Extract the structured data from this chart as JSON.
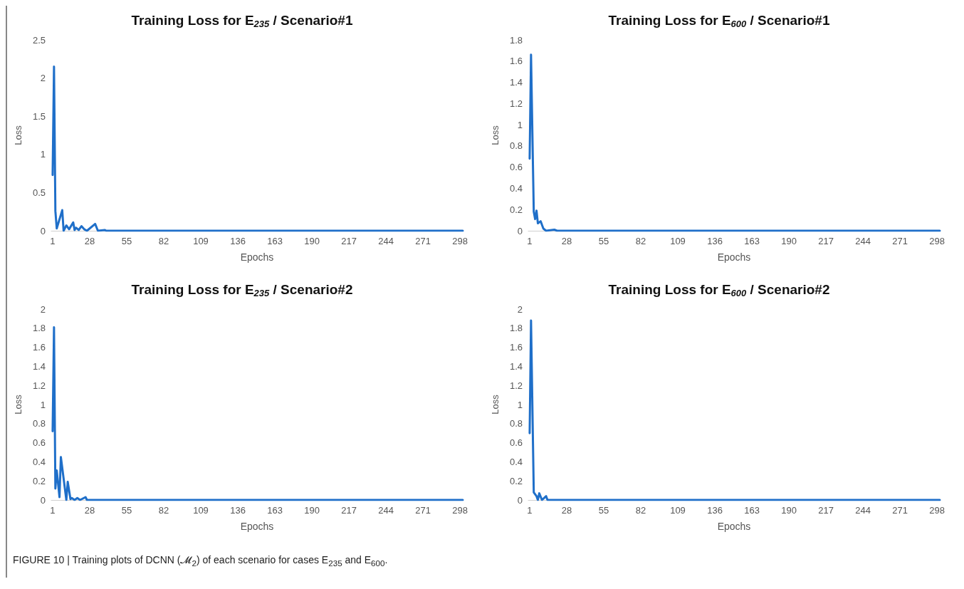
{
  "chart_data": [
    {
      "type": "line",
      "title": "Training Loss for E$_{235}$ / Scenario#1",
      "xlabel": "Epochs",
      "ylabel": "Loss",
      "xlim": [
        0,
        300
      ],
      "xticks": [
        1,
        28,
        55,
        82,
        109,
        136,
        163,
        190,
        217,
        244,
        271,
        298
      ],
      "ylim": [
        0,
        2.5
      ],
      "yticks": [
        0,
        0.5,
        1,
        1.5,
        2,
        2.5
      ],
      "grid": false,
      "marker": "none",
      "line_style": "solid",
      "annotations": [
        "FIGURE 10 | Training plots of DCNN (𝓜$_{2}$) of each scenario for cases E$_{235}$ and E$_{600}$."
      ],
      "series": [
        {
          "color": "#1f6fc9",
          "x": [
            1,
            2,
            3,
            4,
            8,
            9,
            11,
            13,
            16,
            17,
            18,
            20,
            22,
            24,
            26,
            32,
            34,
            39,
            40,
            300
          ],
          "values": [
            0.73,
            2.15,
            0.26,
            0.03,
            0.27,
            0,
            0.07,
            0.02,
            0.11,
            0.01,
            0.04,
            0.01,
            0.06,
            0.02,
            0,
            0.09,
            0,
            0.01,
            0,
            0
          ]
        }
      ]
    },
    {
      "type": "line",
      "title": "Training Loss for E$_{600}$ / Scenario#1",
      "xlabel": "Epochs",
      "ylabel": "Loss",
      "xlim": [
        0,
        300
      ],
      "xticks": [
        1,
        28,
        55,
        82,
        109,
        136,
        163,
        190,
        217,
        244,
        271,
        298
      ],
      "ylim": [
        0,
        1.8
      ],
      "yticks": [
        0,
        0.2,
        0.4,
        0.6,
        0.8,
        1,
        1.2,
        1.4,
        1.6,
        1.8
      ],
      "grid": false,
      "marker": "none",
      "line_style": "solid",
      "series": [
        {
          "color": "#1f6fc9",
          "x": [
            1,
            2,
            4,
            5,
            6,
            7,
            9,
            11,
            13,
            19,
            21,
            300
          ],
          "values": [
            0.68,
            1.66,
            0.18,
            0.11,
            0.19,
            0.07,
            0.09,
            0.02,
            0,
            0.01,
            0,
            0
          ]
        }
      ]
    },
    {
      "type": "line",
      "title": "Training Loss for E$_{235}$ / Scenario#2",
      "xlabel": "Epochs",
      "ylabel": "Loss",
      "xlim": [
        0,
        300
      ],
      "xticks": [
        1,
        28,
        55,
        82,
        109,
        136,
        163,
        190,
        217,
        244,
        271,
        298
      ],
      "ylim": [
        0,
        2
      ],
      "yticks": [
        0,
        0.2,
        0.4,
        0.6,
        0.8,
        1,
        1.2,
        1.4,
        1.6,
        1.8,
        2
      ],
      "grid": false,
      "marker": "none",
      "line_style": "solid",
      "series": [
        {
          "color": "#1f6fc9",
          "x": [
            1,
            2,
            3,
            4,
            6,
            7,
            11,
            12,
            14,
            15,
            17,
            19,
            21,
            25,
            26,
            300
          ],
          "values": [
            0.72,
            1.81,
            0.12,
            0.31,
            0.03,
            0.45,
            0,
            0.19,
            0.01,
            0.02,
            0,
            0.02,
            0,
            0.03,
            0,
            0
          ]
        }
      ]
    },
    {
      "type": "line",
      "title": "Training Loss for E$_{600}$ / Scenario#2",
      "xlabel": "Epochs",
      "ylabel": "Loss",
      "xlim": [
        0,
        300
      ],
      "xticks": [
        1,
        28,
        55,
        82,
        109,
        136,
        163,
        190,
        217,
        244,
        271,
        298
      ],
      "ylim": [
        0,
        2
      ],
      "yticks": [
        0,
        0.2,
        0.4,
        0.6,
        0.8,
        1,
        1.2,
        1.4,
        1.6,
        1.8,
        2
      ],
      "grid": false,
      "marker": "none",
      "line_style": "solid",
      "series": [
        {
          "color": "#1f6fc9",
          "x": [
            1,
            2,
            4,
            6,
            7,
            8,
            10,
            13,
            14,
            300
          ],
          "values": [
            0.7,
            1.88,
            0.08,
            0.04,
            0,
            0.07,
            0,
            0.04,
            0,
            0
          ]
        }
      ]
    }
  ]
}
